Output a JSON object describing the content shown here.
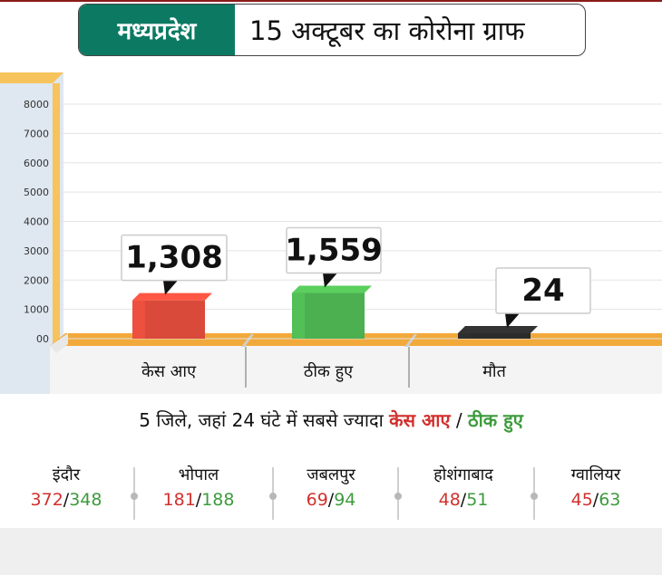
{
  "header": {
    "state": "मध्यप्रदेश",
    "title": "15 अक्टूबर का कोरोना ग्राफ"
  },
  "chart_data": {
    "type": "bar",
    "categories": [
      "केस आए",
      "ठीक हुए",
      "मौत"
    ],
    "values": [
      1308,
      1559,
      24
    ],
    "value_labels": [
      "1,308",
      "1,559",
      "24"
    ],
    "yticks": [
      "00",
      "1000",
      "2000",
      "3000",
      "4000",
      "5000",
      "6000",
      "7000",
      "8000"
    ],
    "ylim": [
      0,
      8000
    ],
    "grid": true,
    "colors": [
      "#d94a3a",
      "#4caf50",
      "#2b2b2b"
    ]
  },
  "subhead": {
    "prefix": "5 जिले, जहां 24 घंटे में सबसे ज्यादा ",
    "cases": "केस आए",
    "slash": " / ",
    "recovered": "ठीक हुए"
  },
  "districts": [
    {
      "name": "इंदौर",
      "cases": "372",
      "recovered": "348"
    },
    {
      "name": "भोपाल",
      "cases": "181",
      "recovered": "188"
    },
    {
      "name": "जबलपुर",
      "cases": "69",
      "recovered": "94"
    },
    {
      "name": "होशंगाबाद",
      "cases": "48",
      "recovered": "51"
    },
    {
      "name": "ग्वालियर",
      "cases": "45",
      "recovered": "63"
    }
  ],
  "separator": "/"
}
